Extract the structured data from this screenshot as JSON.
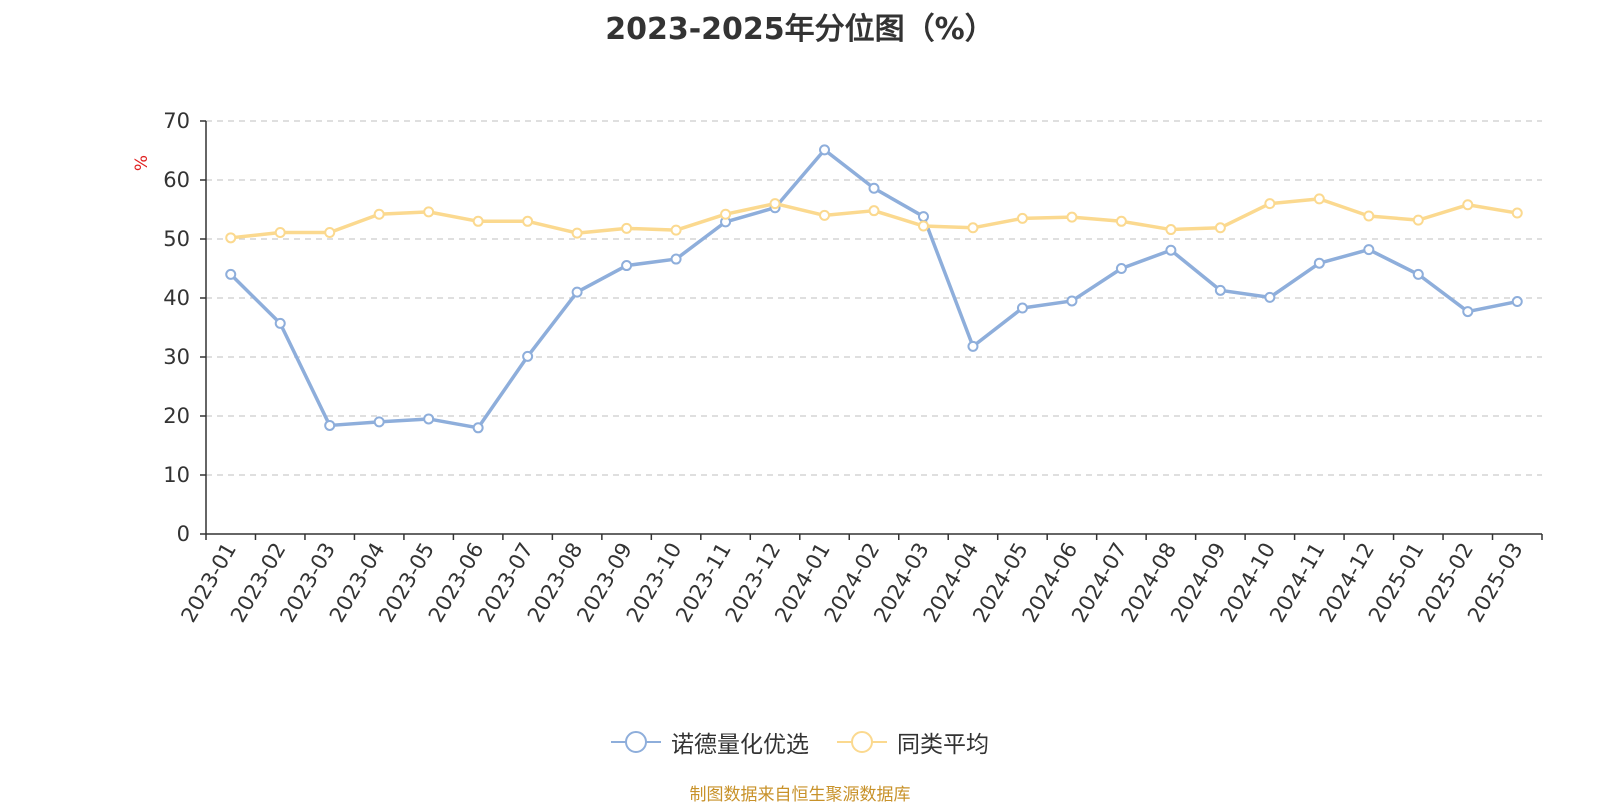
{
  "title": "2023-2025年分位图（%）",
  "source": "制图数据来自恒生聚源数据库",
  "chart_data": {
    "type": "line",
    "title": "2023-2025年分位图（%）",
    "ylabel": "%",
    "ylim": [
      0,
      70
    ],
    "yticks": [
      0,
      10,
      20,
      30,
      40,
      50,
      60,
      70
    ],
    "grid": true,
    "legend_position": "bottom-center",
    "categories": [
      "2023-01",
      "2023-02",
      "2023-03",
      "2023-04",
      "2023-05",
      "2023-06",
      "2023-07",
      "2023-08",
      "2023-09",
      "2023-10",
      "2023-11",
      "2023-12",
      "2024-01",
      "2024-02",
      "2024-03",
      "2024-04",
      "2024-05",
      "2024-06",
      "2024-07",
      "2024-08",
      "2024-09",
      "2024-10",
      "2024-11",
      "2024-12",
      "2025-01",
      "2025-02",
      "2025-03"
    ],
    "series": [
      {
        "name": "诺德量化优选",
        "color": "#8eaedb",
        "values": [
          44.0,
          35.7,
          18.4,
          19.0,
          19.5,
          18.0,
          30.1,
          41.0,
          45.5,
          46.6,
          52.9,
          55.3,
          65.1,
          58.6,
          53.8,
          31.8,
          38.3,
          39.5,
          45.0,
          48.1,
          41.3,
          40.1,
          45.9,
          48.2,
          44.0,
          37.7,
          39.4
        ]
      },
      {
        "name": "同类平均",
        "color": "#fbd98f",
        "values": [
          50.2,
          51.1,
          51.1,
          54.2,
          54.6,
          53.0,
          53.0,
          51.0,
          51.8,
          51.5,
          54.2,
          56.0,
          54.0,
          54.8,
          52.2,
          51.9,
          53.5,
          53.7,
          53.0,
          51.6,
          51.9,
          56.0,
          56.8,
          53.9,
          53.2,
          55.8,
          54.4
        ]
      }
    ]
  }
}
